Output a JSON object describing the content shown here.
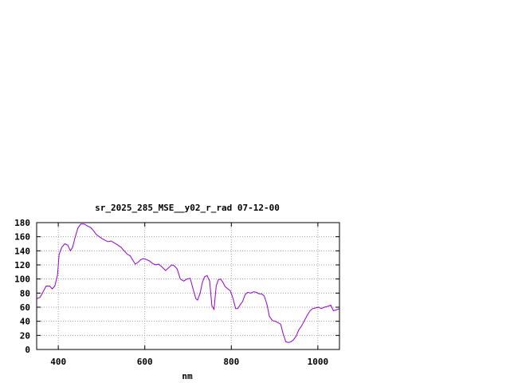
{
  "chart_data": {
    "type": "line",
    "title": "sr_2025_285_MSE__y02_r_rad 07-12-00",
    "xlabel": "nm",
    "ylabel": "",
    "xlim": [
      350,
      1050
    ],
    "ylim": [
      0,
      180
    ],
    "x_ticks": [
      400,
      600,
      800,
      1000
    ],
    "y_ticks": [
      0,
      20,
      40,
      60,
      80,
      100,
      120,
      140,
      160,
      180
    ],
    "grid": true,
    "colors": {
      "series": "#9400d3",
      "axis": "#000000",
      "grid": "#a0a0a0"
    },
    "series": [
      {
        "name": "",
        "x": [
          350,
          358,
          365,
          372,
          380,
          386,
          392,
          398,
          402,
          408,
          415,
          422,
          428,
          433,
          438,
          445,
          452,
          460,
          468,
          475,
          482,
          488,
          495,
          502,
          508,
          515,
          522,
          530,
          538,
          545,
          552,
          560,
          566,
          572,
          578,
          585,
          590,
          596,
          602,
          610,
          618,
          625,
          632,
          640,
          648,
          655,
          662,
          668,
          675,
          682,
          690,
          697,
          705,
          712,
          718,
          722,
          728,
          733,
          738,
          744,
          750,
          755,
          760,
          765,
          770,
          775,
          780,
          786,
          792,
          798,
          804,
          810,
          815,
          820,
          826,
          832,
          838,
          845,
          852,
          858,
          864,
          870,
          876,
          882,
          888,
          895,
          902,
          908,
          914,
          920,
          926,
          932,
          938,
          944,
          950,
          956,
          962,
          968,
          975,
          982,
          988,
          995,
          1002,
          1008,
          1015,
          1022,
          1030,
          1036,
          1042,
          1050
        ],
        "values": [
          72,
          74,
          82,
          90,
          90,
          86,
          90,
          105,
          135,
          145,
          150,
          148,
          140,
          145,
          157,
          172,
          178,
          178,
          175,
          173,
          168,
          163,
          160,
          157,
          155,
          153,
          154,
          151,
          148,
          145,
          140,
          135,
          133,
          127,
          121,
          124,
          127,
          129,
          128,
          126,
          122,
          120,
          121,
          117,
          112,
          116,
          120,
          119,
          114,
          100,
          97,
          100,
          101,
          85,
          72,
          70,
          80,
          95,
          103,
          105,
          97,
          62,
          57,
          90,
          99,
          100,
          96,
          89,
          86,
          83,
          72,
          58,
          58,
          63,
          68,
          78,
          81,
          80,
          82,
          81,
          79,
          79,
          76,
          65,
          47,
          41,
          40,
          38,
          36,
          22,
          11,
          10,
          11,
          14,
          19,
          28,
          33,
          40,
          48,
          55,
          58,
          59,
          60,
          58,
          60,
          61,
          63,
          55,
          56,
          58
        ]
      }
    ]
  }
}
